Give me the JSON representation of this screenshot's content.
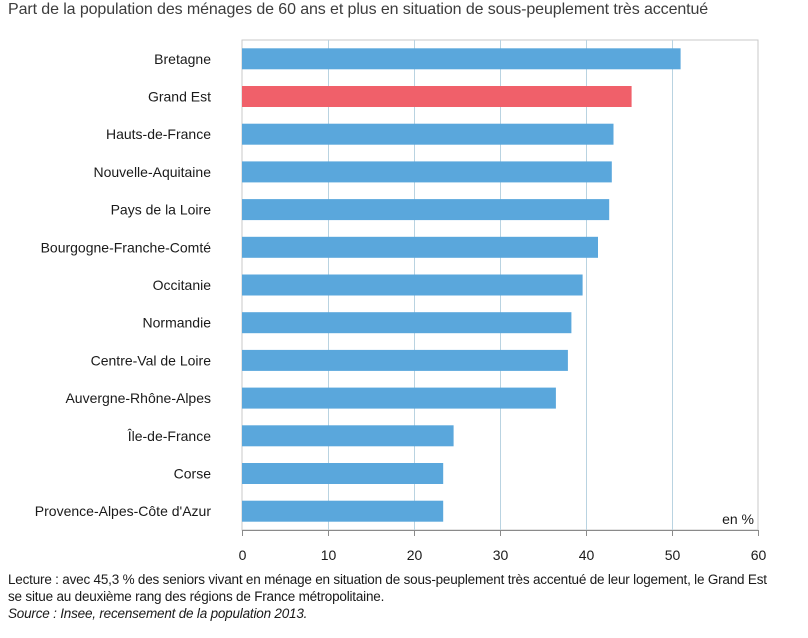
{
  "title": "Part de la population des ménages de 60 ans et plus en situation de sous-peuplement très accentué",
  "unit_label": "en %",
  "note": {
    "line1": "Lecture : avec 45,3 % des seniors vivant en ménage en situation de sous-peuplement très accentué de leur logement, le Grand Est",
    "line2": "se situe au deuxième rang des régions de France métropolitaine.",
    "source": "Source : Insee, recensement de la population 2013."
  },
  "colors": {
    "bar": "#5aa7dc",
    "highlight": "#f0606a",
    "grid": "#b9d3e1",
    "axis": "#8a8a8a"
  },
  "chart_data": {
    "type": "bar",
    "orientation": "horizontal",
    "categories": [
      "Bretagne",
      "Grand Est",
      "Hauts-de-France",
      "Nouvelle-Aquitaine",
      "Pays de la Loire",
      "Bourgogne-Franche-Comté",
      "Occitanie",
      "Normandie",
      "Centre-Val de Loire",
      "Auvergne-Rhône-Alpes",
      "Île-de-France",
      "Corse",
      "Provence-Alpes-Côte d'Azur"
    ],
    "values": [
      51.0,
      45.3,
      43.2,
      43.0,
      42.7,
      41.4,
      39.6,
      38.3,
      37.9,
      36.5,
      24.6,
      23.4,
      23.4
    ],
    "highlight": "Grand Est",
    "xlim": [
      0,
      60
    ],
    "xticks": [
      0,
      10,
      20,
      30,
      40,
      50,
      60
    ],
    "grid": true,
    "xlabel": "",
    "ylabel": ""
  }
}
